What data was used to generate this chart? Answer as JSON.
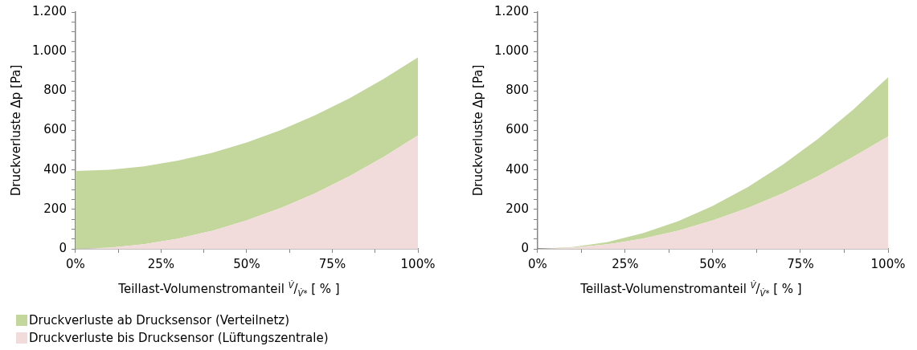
{
  "chart_data": [
    {
      "type": "area",
      "stacked": true,
      "xlabel": "Teillast-Volumenstromanteil $^{V̇}$/$_{V̇*}$ [ % ]",
      "ylabel": "Druckverluste Δp [Pa]",
      "x": [
        0,
        10,
        20,
        30,
        40,
        50,
        60,
        70,
        80,
        90,
        100
      ],
      "series": [
        {
          "name": "Druckverluste bis Drucksensor (Lüftungszentrale)",
          "color": "#f2dcdb",
          "values": [
            0,
            6,
            23,
            52,
            92,
            144,
            207,
            282,
            368,
            466,
            575
          ]
        },
        {
          "name": "Druckverluste ab Drucksensor (Verteilnetz)",
          "color": "#c3d69b",
          "values": [
            395,
            395,
            395,
            395,
            395,
            395,
            395,
            395,
            395,
            395,
            395
          ]
        }
      ],
      "xlim": [
        0,
        100
      ],
      "xticks": [
        {
          "value": 0,
          "label": "0%"
        },
        {
          "value": 12.5,
          "label": null
        },
        {
          "value": 25,
          "label": "25%"
        },
        {
          "value": 37.5,
          "label": null
        },
        {
          "value": 50,
          "label": "50%"
        },
        {
          "value": 62.5,
          "label": null
        },
        {
          "value": 75,
          "label": "75%"
        },
        {
          "value": 87.5,
          "label": null
        },
        {
          "value": 100,
          "label": "100%"
        }
      ],
      "ylim": [
        0,
        1200
      ],
      "yticks": [
        0,
        {
          "value": 50,
          "label": null
        },
        {
          "value": 100,
          "label": null
        },
        {
          "value": 150,
          "label": null
        },
        200,
        {
          "value": 250,
          "label": null
        },
        {
          "value": 300,
          "label": null
        },
        {
          "value": 350,
          "label": null
        },
        400,
        {
          "value": 450,
          "label": null
        },
        {
          "value": 500,
          "label": null
        },
        {
          "value": 550,
          "label": null
        },
        600,
        {
          "value": 650,
          "label": null
        },
        {
          "value": 700,
          "label": null
        },
        {
          "value": 750,
          "label": null
        },
        800,
        {
          "value": 850,
          "label": null
        },
        {
          "value": 900,
          "label": null
        },
        {
          "value": 950,
          "label": null
        },
        {
          "value": 1000,
          "label": "1.000"
        },
        {
          "value": 1050,
          "label": null
        },
        {
          "value": 1100,
          "label": null
        },
        {
          "value": 1150,
          "label": null
        },
        {
          "value": 1200,
          "label": "1.200"
        }
      ],
      "grid": false,
      "legend": "bottom left"
    },
    {
      "type": "area",
      "stacked": true,
      "xlabel": "Teillast-Volumenstromanteil $^{V̇}$/$_{V̇*}$ [ % ]",
      "ylabel": "Druckverluste Δp [Pa]",
      "x": [
        0,
        10,
        20,
        30,
        40,
        50,
        60,
        70,
        80,
        90,
        100
      ],
      "series": [
        {
          "color": "#f2dcdb",
          "values": [
            0,
            6,
            23,
            52,
            92,
            144,
            207,
            282,
            368,
            466,
            570
          ]
        },
        {
          "color": "#c3d69b",
          "values": [
            0,
            3,
            12,
            27,
            47,
            74,
            106,
            145,
            189,
            239,
            300
          ]
        }
      ],
      "xlim": [
        0,
        100
      ],
      "xticks": [
        {
          "value": 0,
          "label": "0%"
        },
        {
          "value": 12.5,
          "label": null
        },
        {
          "value": 25,
          "label": "25%"
        },
        {
          "value": 37.5,
          "label": null
        },
        {
          "value": 50,
          "label": "50%"
        },
        {
          "value": 62.5,
          "label": null
        },
        {
          "value": 75,
          "label": "75%"
        },
        {
          "value": 87.5,
          "label": null
        },
        {
          "value": 100,
          "label": "100%"
        }
      ],
      "ylim": [
        0,
        1200
      ],
      "yticks": [
        0,
        {
          "value": 50,
          "label": null
        },
        {
          "value": 100,
          "label": null
        },
        {
          "value": 150,
          "label": null
        },
        200,
        {
          "value": 250,
          "label": null
        },
        {
          "value": 300,
          "label": null
        },
        {
          "value": 350,
          "label": null
        },
        400,
        {
          "value": 450,
          "label": null
        },
        {
          "value": 500,
          "label": null
        },
        {
          "value": 550,
          "label": null
        },
        600,
        {
          "value": 650,
          "label": null
        },
        {
          "value": 700,
          "label": null
        },
        {
          "value": 750,
          "label": null
        },
        800,
        {
          "value": 850,
          "label": null
        },
        {
          "value": 900,
          "label": null
        },
        {
          "value": 950,
          "label": null
        },
        {
          "value": 1000,
          "label": "1.000"
        },
        {
          "value": 1050,
          "label": null
        },
        {
          "value": 1100,
          "label": null
        },
        {
          "value": 1150,
          "label": null
        },
        {
          "value": 1200,
          "label": "1.200"
        }
      ],
      "grid": false,
      "legend": false
    }
  ]
}
